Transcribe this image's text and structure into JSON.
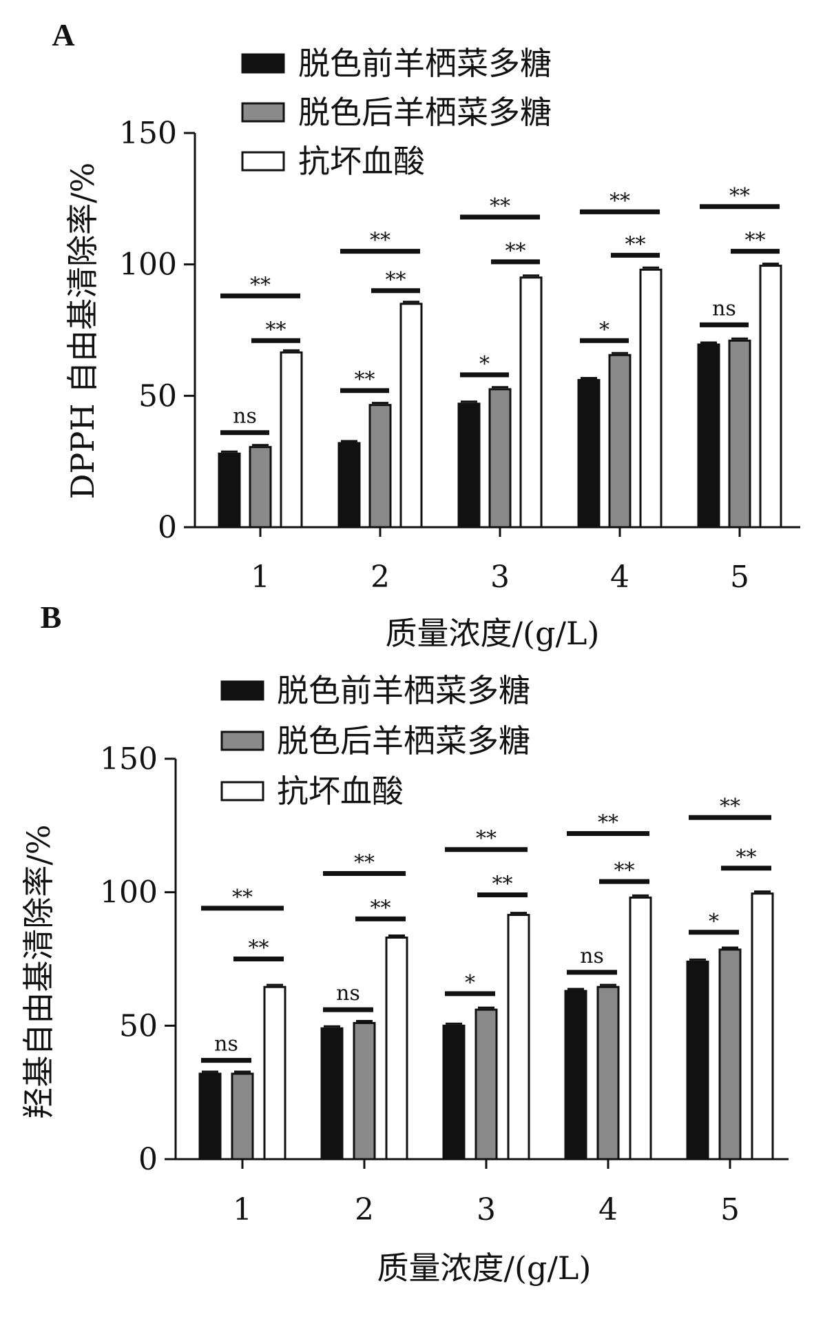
{
  "colors": {
    "series_fills": [
      "#111111",
      "#8a8a8a",
      "#ffffff"
    ],
    "stroke": "#111111"
  },
  "chart_data": [
    {
      "panel": "A",
      "type": "bar",
      "xlabel": "质量浓度/(g/L)",
      "ylabel": "DPPH 自由基清除率/%",
      "categories": [
        "1",
        "2",
        "3",
        "4",
        "5"
      ],
      "ylim": [
        0,
        150
      ],
      "yticks": [
        "0",
        "50",
        "100",
        "150"
      ],
      "legend_position": "top-left",
      "series": [
        {
          "name": "脱色前羊栖菜多糖",
          "values": [
            28,
            32,
            47,
            56,
            69.5
          ]
        },
        {
          "name": "脱色后羊栖菜多糖",
          "values": [
            30.5,
            46.5,
            52.5,
            65.5,
            71
          ]
        },
        {
          "name": "抗坏血酸",
          "values": [
            66.5,
            85,
            95,
            98,
            99.5
          ]
        }
      ],
      "significance": [
        {
          "category": 0,
          "from": 0,
          "to": 1,
          "level": 36,
          "label": "ns"
        },
        {
          "category": 0,
          "from": 0,
          "to": 2,
          "level": 88,
          "label": "**"
        },
        {
          "category": 0,
          "from": 1,
          "to": 2,
          "level": 71,
          "label": "**"
        },
        {
          "category": 1,
          "from": 0,
          "to": 1,
          "level": 52,
          "label": "**"
        },
        {
          "category": 1,
          "from": 0,
          "to": 2,
          "level": 105,
          "label": "**"
        },
        {
          "category": 1,
          "from": 1,
          "to": 2,
          "level": 90,
          "label": "**"
        },
        {
          "category": 2,
          "from": 0,
          "to": 1,
          "level": 58,
          "label": "*"
        },
        {
          "category": 2,
          "from": 0,
          "to": 2,
          "level": 118,
          "label": "**"
        },
        {
          "category": 2,
          "from": 1,
          "to": 2,
          "level": 101,
          "label": "**"
        },
        {
          "category": 3,
          "from": 0,
          "to": 1,
          "level": 71,
          "label": "*"
        },
        {
          "category": 3,
          "from": 0,
          "to": 2,
          "level": 120,
          "label": "**"
        },
        {
          "category": 3,
          "from": 1,
          "to": 2,
          "level": 103.5,
          "label": "**"
        },
        {
          "category": 4,
          "from": 0,
          "to": 1,
          "level": 77,
          "label": "ns"
        },
        {
          "category": 4,
          "from": 0,
          "to": 2,
          "level": 122,
          "label": "**"
        },
        {
          "category": 4,
          "from": 1,
          "to": 2,
          "level": 105,
          "label": "**"
        }
      ]
    },
    {
      "panel": "B",
      "type": "bar",
      "xlabel": "质量浓度/(g/L)",
      "ylabel": "羟基自由基清除率/%",
      "categories": [
        "1",
        "2",
        "3",
        "4",
        "5"
      ],
      "ylim": [
        0,
        150
      ],
      "yticks": [
        "0",
        "50",
        "100",
        "150"
      ],
      "legend_position": "top-left",
      "series": [
        {
          "name": "脱色前羊栖菜多糖",
          "values": [
            32,
            49,
            50,
            63,
            74
          ]
        },
        {
          "name": "脱色后羊栖菜多糖",
          "values": [
            32,
            51,
            56,
            64.5,
            78.5
          ]
        },
        {
          "name": "抗坏血酸",
          "values": [
            64.5,
            83,
            91.5,
            98,
            99.5
          ]
        }
      ],
      "significance": [
        {
          "category": 0,
          "from": 0,
          "to": 1,
          "level": 37,
          "label": "ns"
        },
        {
          "category": 0,
          "from": 0,
          "to": 2,
          "level": 94,
          "label": "**"
        },
        {
          "category": 0,
          "from": 1,
          "to": 2,
          "level": 75,
          "label": "**"
        },
        {
          "category": 1,
          "from": 0,
          "to": 1,
          "level": 56,
          "label": "ns"
        },
        {
          "category": 1,
          "from": 0,
          "to": 2,
          "level": 107,
          "label": "**"
        },
        {
          "category": 1,
          "from": 1,
          "to": 2,
          "level": 90,
          "label": "**"
        },
        {
          "category": 2,
          "from": 0,
          "to": 1,
          "level": 62,
          "label": "*"
        },
        {
          "category": 2,
          "from": 0,
          "to": 2,
          "level": 116,
          "label": "**"
        },
        {
          "category": 2,
          "from": 1,
          "to": 2,
          "level": 99,
          "label": "**"
        },
        {
          "category": 3,
          "from": 0,
          "to": 1,
          "level": 70,
          "label": "ns"
        },
        {
          "category": 3,
          "from": 0,
          "to": 2,
          "level": 122,
          "label": "**"
        },
        {
          "category": 3,
          "from": 1,
          "to": 2,
          "level": 104,
          "label": "**"
        },
        {
          "category": 4,
          "from": 0,
          "to": 1,
          "level": 85,
          "label": "*"
        },
        {
          "category": 4,
          "from": 0,
          "to": 2,
          "level": 128,
          "label": "**"
        },
        {
          "category": 4,
          "from": 1,
          "to": 2,
          "level": 109,
          "label": "**"
        }
      ]
    }
  ]
}
